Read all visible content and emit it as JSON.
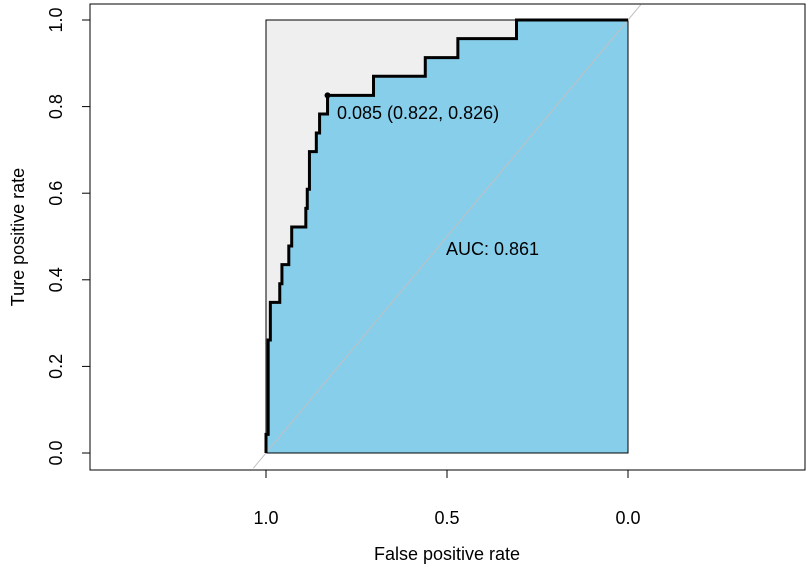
{
  "chart_data": {
    "type": "line",
    "subtype": "roc",
    "xlabel": "False positive rate",
    "ylabel": "Ture positive rate",
    "xaxis_reversed": true,
    "xlim": [
      1.0,
      0.0
    ],
    "ylim": [
      0.0,
      1.0
    ],
    "x_ticks": [
      "1.0",
      "0.5",
      "0.0"
    ],
    "y_ticks": [
      "0.0",
      "0.2",
      "0.4",
      "0.6",
      "0.8",
      "1.0"
    ],
    "grid": false,
    "auc_label": "AUC: 0.861",
    "threshold_label": "0.085 (0.822, 0.826)",
    "threshold_point": {
      "x": 0.822,
      "y": 0.826
    },
    "series": [
      {
        "points": [
          [
            1.0,
            0.0
          ],
          [
            1.0,
            0.043
          ],
          [
            0.994,
            0.043
          ],
          [
            0.994,
            0.261
          ],
          [
            0.988,
            0.261
          ],
          [
            0.988,
            0.348
          ],
          [
            0.962,
            0.348
          ],
          [
            0.962,
            0.391
          ],
          [
            0.956,
            0.391
          ],
          [
            0.956,
            0.435
          ],
          [
            0.937,
            0.435
          ],
          [
            0.937,
            0.478
          ],
          [
            0.929,
            0.478
          ],
          [
            0.929,
            0.522
          ],
          [
            0.89,
            0.522
          ],
          [
            0.89,
            0.565
          ],
          [
            0.886,
            0.565
          ],
          [
            0.886,
            0.609
          ],
          [
            0.88,
            0.609
          ],
          [
            0.88,
            0.696
          ],
          [
            0.861,
            0.696
          ],
          [
            0.861,
            0.739
          ],
          [
            0.852,
            0.739
          ],
          [
            0.852,
            0.783
          ],
          [
            0.83,
            0.783
          ],
          [
            0.83,
            0.826
          ],
          [
            0.703,
            0.826
          ],
          [
            0.703,
            0.87
          ],
          [
            0.56,
            0.87
          ],
          [
            0.56,
            0.913
          ],
          [
            0.47,
            0.913
          ],
          [
            0.47,
            0.957
          ],
          [
            0.308,
            0.957
          ],
          [
            0.308,
            1.0
          ],
          [
            0.0,
            1.0
          ]
        ]
      }
    ],
    "colors": {
      "area": "#87ceeb",
      "upper_region": "#efefef",
      "curve": "#000000",
      "diagonal": "#c0c0c0"
    }
  }
}
